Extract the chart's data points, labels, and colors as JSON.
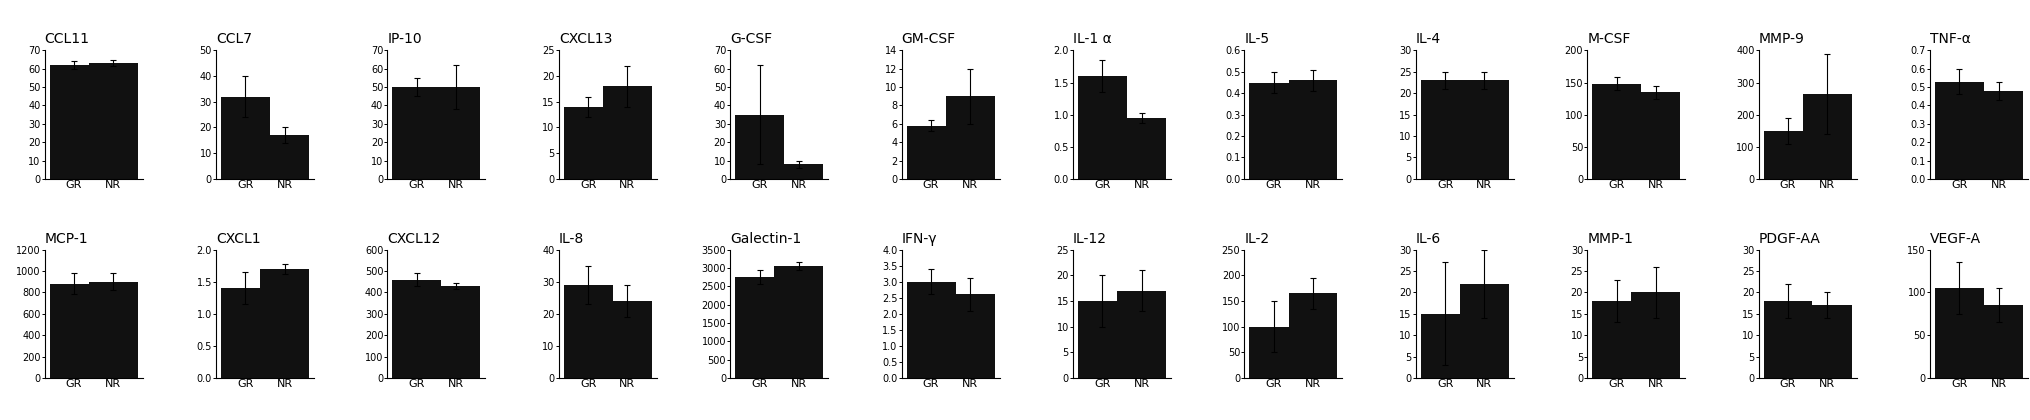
{
  "row1": [
    {
      "title": "CCL11",
      "GR": 62,
      "NR": 63,
      "GR_err": 2,
      "NR_err": 1.5,
      "ylim": [
        0,
        70
      ],
      "yticks": [
        0,
        10,
        20,
        30,
        40,
        50,
        60,
        70
      ]
    },
    {
      "title": "CCL7",
      "GR": 32,
      "NR": 17,
      "GR_err": 8,
      "NR_err": 3,
      "ylim": [
        0,
        50
      ],
      "yticks": [
        0,
        10,
        20,
        30,
        40,
        50
      ]
    },
    {
      "title": "IP-10",
      "GR": 50,
      "NR": 50,
      "GR_err": 5,
      "NR_err": 12,
      "ylim": [
        0,
        70
      ],
      "yticks": [
        0,
        10,
        20,
        30,
        40,
        50,
        60,
        70
      ]
    },
    {
      "title": "CXCL13",
      "GR": 14,
      "NR": 18,
      "GR_err": 2,
      "NR_err": 4,
      "ylim": [
        0,
        25
      ],
      "yticks": [
        0,
        5,
        10,
        15,
        20,
        25
      ]
    },
    {
      "title": "G-CSF",
      "GR": 35,
      "NR": 8,
      "GR_err": 27,
      "NR_err": 2,
      "ylim": [
        0,
        70
      ],
      "yticks": [
        0,
        10,
        20,
        30,
        40,
        50,
        60,
        70
      ]
    },
    {
      "title": "GM-CSF",
      "GR": 5.8,
      "NR": 9,
      "GR_err": 0.6,
      "NR_err": 3,
      "ylim": [
        0,
        14
      ],
      "yticks": [
        0,
        2,
        4,
        6,
        8,
        10,
        12,
        14
      ]
    },
    {
      "title": "IL-1 α",
      "GR": 1.6,
      "NR": 0.95,
      "GR_err": 0.25,
      "NR_err": 0.08,
      "ylim": [
        0,
        2
      ],
      "yticks": [
        0,
        0.5,
        1,
        1.5,
        2
      ]
    },
    {
      "title": "IL-5",
      "GR": 0.45,
      "NR": 0.46,
      "GR_err": 0.05,
      "NR_err": 0.05,
      "ylim": [
        0,
        0.6
      ],
      "yticks": [
        0,
        0.1,
        0.2,
        0.3,
        0.4,
        0.5,
        0.6
      ]
    },
    {
      "title": "IL-4",
      "GR": 23,
      "NR": 23,
      "GR_err": 2,
      "NR_err": 2,
      "ylim": [
        0,
        30
      ],
      "yticks": [
        0,
        5,
        10,
        15,
        20,
        25,
        30
      ]
    },
    {
      "title": "M-CSF",
      "GR": 148,
      "NR": 135,
      "GR_err": 10,
      "NR_err": 10,
      "ylim": [
        0,
        200
      ],
      "yticks": [
        0,
        50,
        100,
        150,
        200
      ]
    },
    {
      "title": "MMP-9",
      "GR": 150,
      "NR": 265,
      "GR_err": 40,
      "NR_err": 125,
      "ylim": [
        0,
        400
      ],
      "yticks": [
        0,
        100,
        200,
        300,
        400
      ]
    },
    {
      "title": "TNF-α",
      "GR": 0.53,
      "NR": 0.48,
      "GR_err": 0.07,
      "NR_err": 0.05,
      "ylim": [
        0,
        0.7
      ],
      "yticks": [
        0,
        0.1,
        0.2,
        0.3,
        0.4,
        0.5,
        0.6,
        0.7
      ]
    }
  ],
  "row2": [
    {
      "title": "MCP-1",
      "GR": 880,
      "NR": 900,
      "GR_err": 100,
      "NR_err": 80,
      "ylim": [
        0,
        1200
      ],
      "yticks": [
        0,
        200,
        400,
        600,
        800,
        1000,
        1200
      ]
    },
    {
      "title": "CXCL1",
      "GR": 1.4,
      "NR": 1.7,
      "GR_err": 0.25,
      "NR_err": 0.08,
      "ylim": [
        0,
        2
      ],
      "yticks": [
        0,
        0.5,
        1,
        1.5,
        2
      ]
    },
    {
      "title": "CXCL12",
      "GR": 460,
      "NR": 430,
      "GR_err": 30,
      "NR_err": 15,
      "ylim": [
        0,
        600
      ],
      "yticks": [
        0,
        100,
        200,
        300,
        400,
        500,
        600
      ]
    },
    {
      "title": "IL-8",
      "GR": 29,
      "NR": 24,
      "GR_err": 6,
      "NR_err": 5,
      "ylim": [
        0,
        40
      ],
      "yticks": [
        0,
        10,
        20,
        30,
        40
      ]
    },
    {
      "title": "Galectin-1",
      "GR": 2750,
      "NR": 3050,
      "GR_err": 200,
      "NR_err": 100,
      "ylim": [
        0,
        3500
      ],
      "yticks": [
        0,
        500,
        1000,
        1500,
        2000,
        2500,
        3000,
        3500
      ]
    },
    {
      "title": "IFN-γ",
      "GR": 3.0,
      "NR": 2.6,
      "GR_err": 0.4,
      "NR_err": 0.5,
      "ylim": [
        0,
        4
      ],
      "yticks": [
        0,
        0.5,
        1,
        1.5,
        2,
        2.5,
        3,
        3.5,
        4
      ]
    },
    {
      "title": "IL-12",
      "GR": 15,
      "NR": 17,
      "GR_err": 5,
      "NR_err": 4,
      "ylim": [
        0,
        25
      ],
      "yticks": [
        0,
        5,
        10,
        15,
        20,
        25
      ]
    },
    {
      "title": "IL-2",
      "GR": 100,
      "NR": 165,
      "GR_err": 50,
      "NR_err": 30,
      "ylim": [
        0,
        250
      ],
      "yticks": [
        0,
        50,
        100,
        150,
        200,
        250
      ]
    },
    {
      "title": "IL-6",
      "GR": 15,
      "NR": 22,
      "GR_err": 12,
      "NR_err": 8,
      "ylim": [
        0,
        30
      ],
      "yticks": [
        0,
        5,
        10,
        15,
        20,
        25,
        30
      ]
    },
    {
      "title": "MMP-1",
      "GR": 18,
      "NR": 20,
      "GR_err": 5,
      "NR_err": 6,
      "ylim": [
        0,
        30
      ],
      "yticks": [
        0,
        5,
        10,
        15,
        20,
        25,
        30
      ]
    },
    {
      "title": "PDGF-AA",
      "GR": 18,
      "NR": 17,
      "GR_err": 4,
      "NR_err": 3,
      "ylim": [
        0,
        30
      ],
      "yticks": [
        0,
        5,
        10,
        15,
        20,
        25,
        30
      ]
    },
    {
      "title": "VEGF-A",
      "GR": 105,
      "NR": 85,
      "GR_err": 30,
      "NR_err": 20,
      "ylim": [
        0,
        150
      ],
      "yticks": [
        0,
        50,
        100,
        150
      ]
    }
  ],
  "bar_color": "#111111",
  "bar_width": 0.5,
  "capsize": 2.5,
  "title_fontsize": 10,
  "tick_fontsize": 7,
  "label_fontsize": 8,
  "fig_width": 20.3,
  "fig_height": 4.2,
  "dpi": 100
}
